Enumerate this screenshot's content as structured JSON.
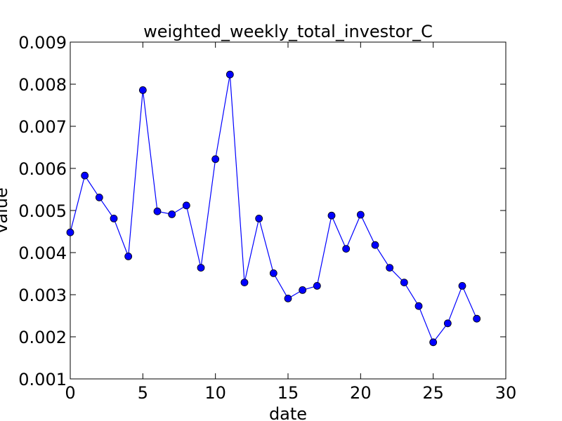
{
  "chart_data": {
    "type": "line",
    "title": "weighted_weekly_total_investor_C",
    "xlabel": "date",
    "ylabel": "value",
    "xlim": [
      0,
      30
    ],
    "ylim": [
      0.001,
      0.009
    ],
    "x_ticks": [
      0,
      5,
      10,
      15,
      20,
      25,
      30
    ],
    "x_tick_labels": [
      "0",
      "5",
      "10",
      "15",
      "20",
      "25",
      "30"
    ],
    "y_ticks": [
      0.001,
      0.002,
      0.003,
      0.004,
      0.005,
      0.006,
      0.007,
      0.008,
      0.009
    ],
    "y_tick_labels": [
      "0.001",
      "0.002",
      "0.003",
      "0.004",
      "0.005",
      "0.006",
      "0.007",
      "0.008",
      "0.009"
    ],
    "grid": false,
    "series": [
      {
        "color": "#0000ff",
        "marker": "circle",
        "x": [
          0,
          1,
          2,
          3,
          4,
          5,
          6,
          7,
          8,
          9,
          10,
          11,
          12,
          13,
          14,
          15,
          16,
          17,
          18,
          19,
          20,
          21,
          22,
          23,
          24,
          25,
          26,
          27,
          28
        ],
        "y": [
          0.00448,
          0.00583,
          0.00531,
          0.00481,
          0.00391,
          0.00786,
          0.00498,
          0.00491,
          0.00512,
          0.00364,
          0.00622,
          0.00823,
          0.00329,
          0.00481,
          0.00351,
          0.00291,
          0.00311,
          0.00321,
          0.00488,
          0.00409,
          0.0049,
          0.00418,
          0.00364,
          0.00329,
          0.00273,
          0.00187,
          0.00232,
          0.00321,
          0.00243
        ]
      }
    ]
  }
}
